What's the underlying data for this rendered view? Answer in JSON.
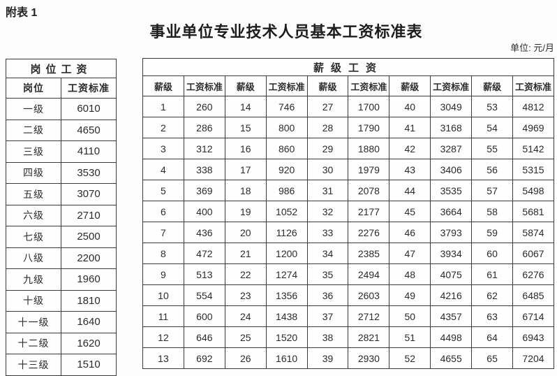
{
  "page": {
    "annotation": "附表 1",
    "title": "事业单位专业技术人员基本工资标准表",
    "unit_label": "单位: 元/月"
  },
  "position_table": {
    "group_header": "岗位工资",
    "columns": [
      "岗位",
      "工资标准"
    ],
    "rows": [
      [
        "一级",
        "6010"
      ],
      [
        "二级",
        "4650"
      ],
      [
        "三级",
        "4110"
      ],
      [
        "四级",
        "3530"
      ],
      [
        "五级",
        "3070"
      ],
      [
        "六级",
        "2710"
      ],
      [
        "七级",
        "2500"
      ],
      [
        "八级",
        "2200"
      ],
      [
        "九级",
        "1960"
      ],
      [
        "十级",
        "1810"
      ],
      [
        "十一级",
        "1640"
      ],
      [
        "十二级",
        "1620"
      ],
      [
        "十三级",
        "1510"
      ]
    ]
  },
  "grade_table": {
    "group_header": "薪级工资",
    "columns": [
      "薪级",
      "工资标准",
      "薪级",
      "工资标准",
      "薪级",
      "工资标准",
      "薪级",
      "工资标准",
      "薪级",
      "工资标准"
    ],
    "rows": [
      [
        "1",
        "260",
        "14",
        "746",
        "27",
        "1700",
        "40",
        "3049",
        "53",
        "4812"
      ],
      [
        "2",
        "286",
        "15",
        "800",
        "28",
        "1790",
        "41",
        "3168",
        "54",
        "4969"
      ],
      [
        "3",
        "312",
        "16",
        "860",
        "29",
        "1880",
        "42",
        "3287",
        "55",
        "5142"
      ],
      [
        "4",
        "338",
        "17",
        "920",
        "30",
        "1979",
        "43",
        "3406",
        "56",
        "5315"
      ],
      [
        "5",
        "369",
        "18",
        "986",
        "31",
        "2078",
        "44",
        "3535",
        "57",
        "5498"
      ],
      [
        "6",
        "400",
        "19",
        "1052",
        "32",
        "2177",
        "45",
        "3664",
        "58",
        "5681"
      ],
      [
        "7",
        "436",
        "20",
        "1126",
        "33",
        "2276",
        "46",
        "3793",
        "59",
        "5874"
      ],
      [
        "8",
        "472",
        "21",
        "1200",
        "34",
        "2385",
        "47",
        "3934",
        "60",
        "6067"
      ],
      [
        "9",
        "513",
        "22",
        "1274",
        "35",
        "2494",
        "48",
        "4075",
        "61",
        "6276"
      ],
      [
        "10",
        "554",
        "23",
        "1356",
        "36",
        "2603",
        "49",
        "4216",
        "62",
        "6485"
      ],
      [
        "11",
        "600",
        "24",
        "1438",
        "37",
        "2712",
        "50",
        "4357",
        "63",
        "6714"
      ],
      [
        "12",
        "646",
        "25",
        "1520",
        "38",
        "2821",
        "51",
        "4498",
        "64",
        "6943"
      ],
      [
        "13",
        "692",
        "26",
        "1610",
        "39",
        "2930",
        "52",
        "4655",
        "65",
        "7204"
      ]
    ]
  },
  "colors": {
    "border": "#3a3a3a",
    "text": "#2b2b2b",
    "background": "#fdfdfd"
  }
}
